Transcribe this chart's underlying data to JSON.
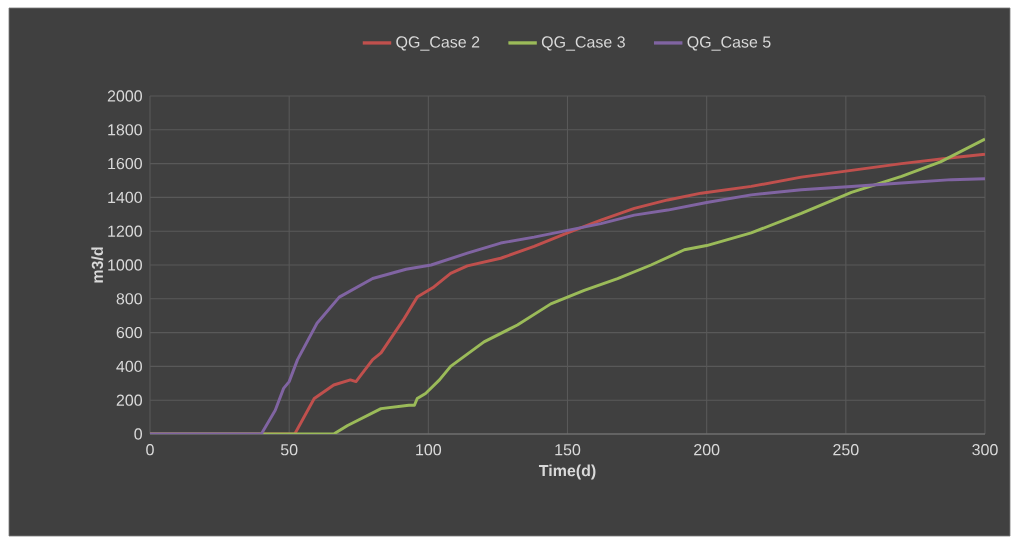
{
  "chart_data": {
    "type": "line",
    "xlabel": "Time(d)",
    "ylabel": "m3/d",
    "xlim": [
      0,
      300
    ],
    "xticks": [
      0,
      50,
      100,
      150,
      200,
      250,
      300
    ],
    "ylim": [
      0,
      2000
    ],
    "yticks": [
      0,
      200,
      400,
      600,
      800,
      1000,
      1200,
      1400,
      1600,
      1800,
      2000
    ],
    "grid": true,
    "legend": "top",
    "marker": "none",
    "line_style": "solid",
    "series": [
      {
        "name": "QG_Case 2",
        "color": "#c0504d",
        "x": [
          0,
          52,
          59,
          66,
          72,
          74,
          80,
          83,
          91,
          96,
          102,
          108,
          114,
          126,
          138,
          150,
          162,
          174,
          186,
          198,
          216,
          234,
          252,
          270,
          288,
          300
        ],
        "values": [
          0,
          0,
          210,
          290,
          320,
          310,
          440,
          480,
          675,
          810,
          870,
          950,
          995,
          1040,
          1110,
          1190,
          1265,
          1335,
          1385,
          1425,
          1465,
          1520,
          1560,
          1600,
          1635,
          1655
        ]
      },
      {
        "name": "QG_Case 3",
        "color": "#9bbb59",
        "x": [
          0,
          66,
          71,
          83,
          93,
          95,
          96,
          99,
          104,
          108,
          120,
          132,
          144,
          156,
          168,
          180,
          192,
          200,
          216,
          234,
          252,
          270,
          284,
          300
        ],
        "values": [
          0,
          0,
          50,
          150,
          170,
          170,
          210,
          240,
          320,
          400,
          545,
          645,
          770,
          850,
          920,
          1000,
          1090,
          1115,
          1190,
          1305,
          1430,
          1525,
          1610,
          1745
        ]
      },
      {
        "name": "QG_Case 5",
        "color": "#8064a2",
        "x": [
          0,
          40,
          45,
          48,
          50,
          53,
          60,
          68,
          80,
          92,
          101,
          114,
          126,
          138,
          150,
          162,
          174,
          186,
          200,
          216,
          234,
          252,
          270,
          288,
          300
        ],
        "values": [
          0,
          0,
          140,
          270,
          310,
          440,
          655,
          810,
          920,
          975,
          1000,
          1070,
          1130,
          1165,
          1205,
          1245,
          1295,
          1325,
          1370,
          1415,
          1445,
          1465,
          1485,
          1505,
          1510
        ]
      }
    ]
  }
}
